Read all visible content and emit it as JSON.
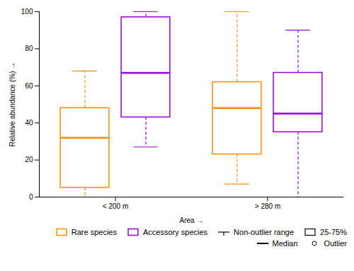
{
  "chart_data": {
    "type": "box",
    "categories": [
      "< 200 m",
      "> 280 m"
    ],
    "series": [
      {
        "name": "Rare species",
        "color": "#FF8C00",
        "values": [
          {
            "whislo": 0,
            "q1": 5,
            "med": 32,
            "q3": 48,
            "whishi": 68,
            "fliers": []
          },
          {
            "whislo": 7,
            "q1": 23,
            "med": 48,
            "q3": 62,
            "whishi": 100,
            "fliers": []
          }
        ]
      },
      {
        "name": "Accessory species",
        "color": "#9400D3",
        "values": [
          {
            "whislo": 27,
            "q1": 43,
            "med": 67,
            "q3": 97,
            "whishi": 100,
            "fliers": []
          },
          {
            "whislo": 0,
            "q1": 35,
            "med": 45,
            "q3": 67,
            "whishi": 90,
            "fliers": []
          }
        ]
      }
    ],
    "xlabel": "Area",
    "ylabel": "Relative abundance (%)",
    "ylim": [
      0,
      100
    ],
    "yticks": [
      0,
      20,
      40,
      60,
      80,
      100
    ],
    "legend": "lower right",
    "legend_items": [
      "Non-outlier range",
      "25-75%",
      "Median",
      "Outlier"
    ]
  }
}
